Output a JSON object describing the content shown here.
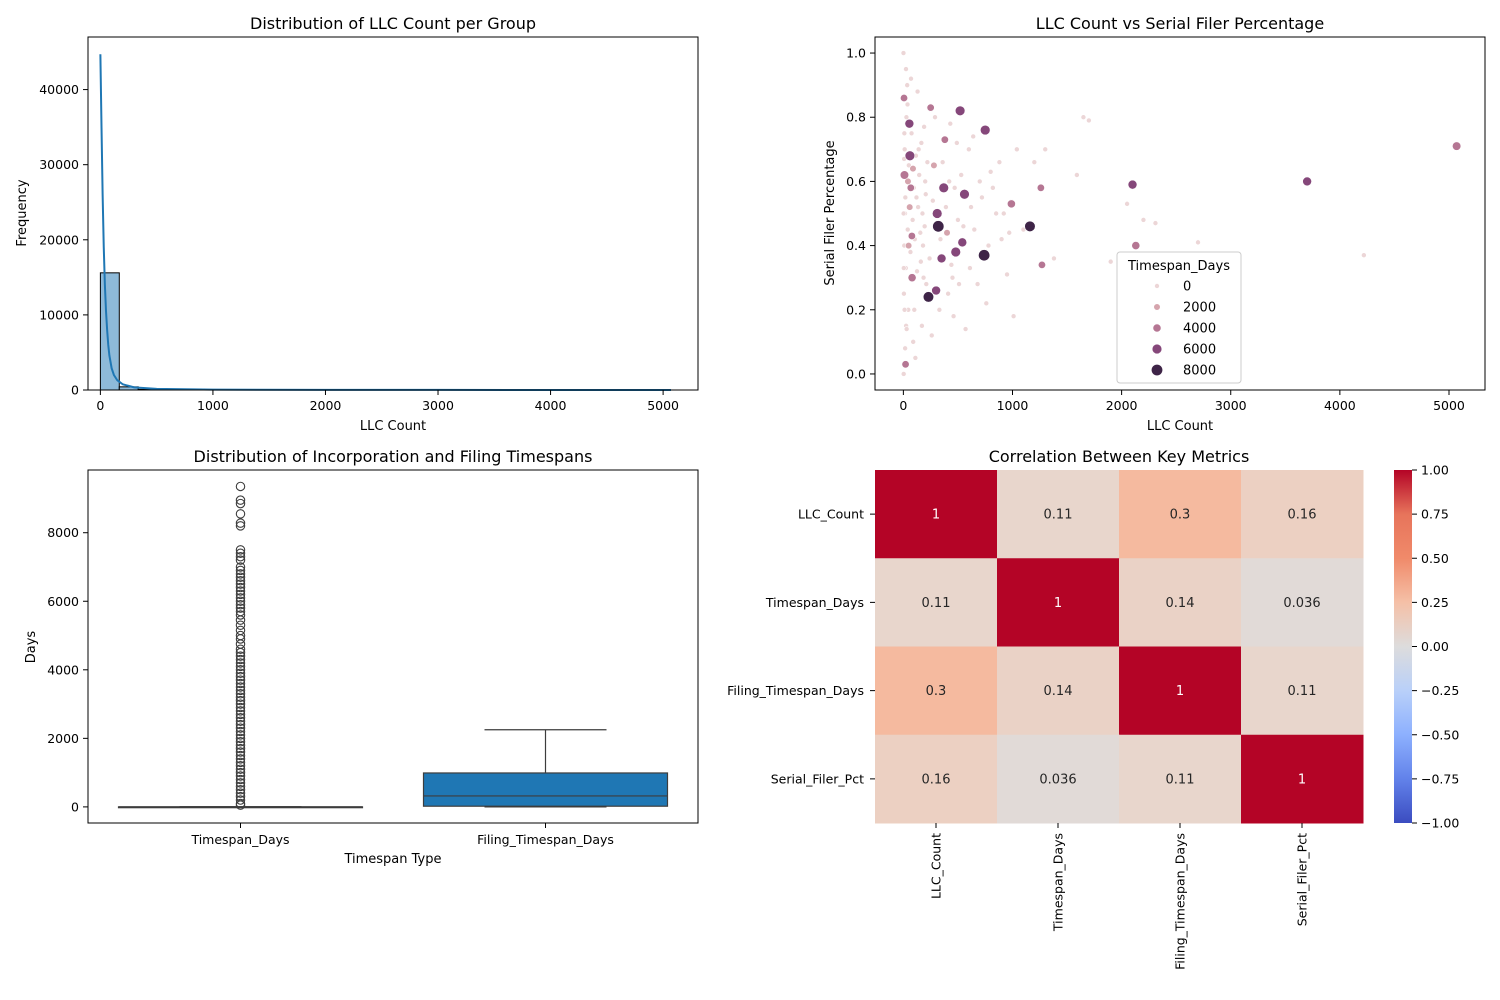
{
  "figure": {
    "background": "#ffffff"
  },
  "chart_data": [
    {
      "id": "hist",
      "type": "bar",
      "title": "Distribution of LLC Count per Group",
      "xlabel": "LLC Count",
      "ylabel": "Frequency",
      "xlim": [
        -110,
        5310
      ],
      "ylim": [
        0,
        47000
      ],
      "xticks": [
        0,
        1000,
        2000,
        3000,
        4000,
        5000
      ],
      "yticks": [
        0,
        10000,
        20000,
        30000,
        40000
      ],
      "bar_color": "#8ebad9",
      "kde_color": "#1f77b4",
      "bins": [
        {
          "x0": 0,
          "x1": 168,
          "count": 15600
        },
        {
          "x0": 168,
          "x1": 336,
          "count": 420
        },
        {
          "x0": 336,
          "x1": 504,
          "count": 90
        },
        {
          "x0": 504,
          "x1": 672,
          "count": 35
        },
        {
          "x0": 672,
          "x1": 840,
          "count": 15
        },
        {
          "x0": 840,
          "x1": 1008,
          "count": 8
        }
      ],
      "kde": {
        "x": [
          0,
          10,
          20,
          30,
          40,
          50,
          60,
          70,
          80,
          100,
          120,
          150,
          200,
          300,
          500,
          1000,
          2000,
          3000,
          4000,
          5070
        ],
        "y": [
          44700,
          35000,
          26000,
          19000,
          14000,
          10500,
          8000,
          6000,
          4600,
          2900,
          2000,
          1300,
          750,
          350,
          150,
          50,
          20,
          10,
          5,
          0
        ]
      }
    },
    {
      "id": "scatter",
      "type": "scatter",
      "title": "LLC Count vs Serial Filer Percentage",
      "xlabel": "LLC Count",
      "ylabel": "Serial Filer Percentage",
      "xlim": [
        -260,
        5330
      ],
      "ylim": [
        -0.05,
        1.05
      ],
      "xticks": [
        0,
        1000,
        2000,
        3000,
        4000,
        5000
      ],
      "yticks": [
        0.0,
        0.2,
        0.4,
        0.6,
        0.8,
        1.0
      ],
      "legend": {
        "title": "Timespan_Days",
        "placement": "lower-center-right",
        "entries": [
          {
            "label": "0",
            "color": "#ecd6d7"
          },
          {
            "label": "2000",
            "color": "#d5a4ad"
          },
          {
            "label": "4000",
            "color": "#b57693"
          },
          {
            "label": "6000",
            "color": "#85477a"
          },
          {
            "label": "8000",
            "color": "#3e2447"
          }
        ]
      },
      "points": [
        [
          1,
          1.0,
          0
        ],
        [
          3,
          0.0,
          0
        ],
        [
          10,
          0.62,
          4500
        ],
        [
          6,
          0.86,
          3000
        ],
        [
          20,
          0.03,
          3000
        ],
        [
          55,
          0.78,
          5000
        ],
        [
          60,
          0.68,
          6000
        ],
        [
          80,
          0.3,
          4000
        ],
        [
          40,
          0.45,
          0
        ],
        [
          15,
          0.5,
          0
        ],
        [
          100,
          0.2,
          0
        ],
        [
          120,
          0.55,
          0
        ],
        [
          140,
          0.7,
          0
        ],
        [
          160,
          0.35,
          0
        ],
        [
          180,
          0.4,
          0
        ],
        [
          200,
          0.6,
          0
        ],
        [
          230,
          0.24,
          7000
        ],
        [
          250,
          0.83,
          3000
        ],
        [
          280,
          0.65,
          2000
        ],
        [
          300,
          0.26,
          5000
        ],
        [
          310,
          0.5,
          6000
        ],
        [
          320,
          0.46,
          8000
        ],
        [
          350,
          0.36,
          5000
        ],
        [
          370,
          0.58,
          6000
        ],
        [
          380,
          0.73,
          3000
        ],
        [
          400,
          0.44,
          2000
        ],
        [
          420,
          0.6,
          0
        ],
        [
          450,
          0.3,
          0
        ],
        [
          480,
          0.38,
          6000
        ],
        [
          500,
          0.48,
          0
        ],
        [
          520,
          0.82,
          6000
        ],
        [
          540,
          0.41,
          5000
        ],
        [
          560,
          0.56,
          6000
        ],
        [
          600,
          0.7,
          0
        ],
        [
          620,
          0.52,
          0
        ],
        [
          650,
          0.45,
          0
        ],
        [
          700,
          0.6,
          0
        ],
        [
          740,
          0.37,
          8000
        ],
        [
          750,
          0.76,
          6000
        ],
        [
          780,
          0.4,
          0
        ],
        [
          800,
          0.63,
          0
        ],
        [
          850,
          0.5,
          0
        ],
        [
          900,
          0.42,
          0
        ],
        [
          950,
          0.31,
          0
        ],
        [
          990,
          0.53,
          4000
        ],
        [
          1010,
          0.18,
          0
        ],
        [
          1040,
          0.7,
          0
        ],
        [
          1100,
          0.45,
          0
        ],
        [
          1160,
          0.46,
          7000
        ],
        [
          1200,
          0.66,
          0
        ],
        [
          1260,
          0.58,
          3000
        ],
        [
          1270,
          0.34,
          3000
        ],
        [
          1300,
          0.7,
          0
        ],
        [
          1380,
          0.36,
          0
        ],
        [
          1590,
          0.62,
          0
        ],
        [
          1650,
          0.8,
          0
        ],
        [
          1700,
          0.79,
          0
        ],
        [
          1900,
          0.35,
          0
        ],
        [
          2050,
          0.53,
          0
        ],
        [
          2100,
          0.59,
          5000
        ],
        [
          2130,
          0.4,
          4000
        ],
        [
          2200,
          0.48,
          0
        ],
        [
          2310,
          0.47,
          0
        ],
        [
          2700,
          0.41,
          0
        ],
        [
          3700,
          0.6,
          5000
        ],
        [
          4220,
          0.37,
          0
        ],
        [
          5070,
          0.71,
          4500
        ],
        [
          25,
          0.15,
          0
        ],
        [
          35,
          0.9,
          0
        ],
        [
          70,
          0.92,
          0
        ],
        [
          90,
          0.1,
          0
        ],
        [
          110,
          0.05,
          0
        ],
        [
          130,
          0.88,
          0
        ],
        [
          170,
          0.15,
          0
        ],
        [
          190,
          0.77,
          0
        ],
        [
          210,
          0.28,
          0
        ],
        [
          260,
          0.12,
          0
        ],
        [
          290,
          0.8,
          0
        ],
        [
          330,
          0.2,
          0
        ],
        [
          360,
          0.66,
          0
        ],
        [
          410,
          0.25,
          0
        ],
        [
          430,
          0.78,
          0
        ],
        [
          460,
          0.18,
          0
        ],
        [
          490,
          0.72,
          0
        ],
        [
          510,
          0.28,
          0
        ],
        [
          530,
          0.62,
          0
        ],
        [
          570,
          0.14,
          0
        ],
        [
          610,
          0.33,
          0
        ],
        [
          640,
          0.74,
          0
        ],
        [
          680,
          0.28,
          0
        ],
        [
          720,
          0.55,
          0
        ],
        [
          760,
          0.22,
          0
        ],
        [
          820,
          0.58,
          0
        ],
        [
          880,
          0.66,
          0
        ],
        [
          920,
          0.5,
          0
        ],
        [
          970,
          0.44,
          0
        ],
        [
          5,
          0.25,
          0
        ],
        [
          8,
          0.4,
          0
        ],
        [
          12,
          0.7,
          0
        ],
        [
          18,
          0.55,
          0
        ],
        [
          22,
          0.33,
          0
        ],
        [
          28,
          0.8,
          0
        ],
        [
          32,
          0.6,
          0
        ],
        [
          45,
          0.2,
          0
        ],
        [
          50,
          0.65,
          0
        ],
        [
          65,
          0.38,
          0
        ],
        [
          75,
          0.75,
          0
        ],
        [
          85,
          0.48,
          0
        ],
        [
          95,
          0.58,
          0
        ],
        [
          105,
          0.42,
          0
        ],
        [
          115,
          0.68,
          0
        ],
        [
          125,
          0.32,
          0
        ],
        [
          135,
          0.52,
          0
        ],
        [
          145,
          0.62,
          0
        ],
        [
          155,
          0.44,
          0
        ],
        [
          165,
          0.72,
          0
        ],
        [
          175,
          0.5,
          0
        ],
        [
          185,
          0.3,
          0
        ],
        [
          195,
          0.46,
          0
        ],
        [
          205,
          0.56,
          0
        ],
        [
          220,
          0.66,
          0
        ],
        [
          240,
          0.36,
          0
        ],
        [
          270,
          0.54,
          0
        ],
        [
          340,
          0.42,
          0
        ],
        [
          390,
          0.52,
          0
        ],
        [
          440,
          0.34,
          0
        ],
        [
          470,
          0.58,
          0
        ],
        [
          550,
          0.46,
          0
        ],
        [
          2,
          0.5,
          0
        ],
        [
          4,
          0.33,
          0
        ],
        [
          7,
          0.67,
          0
        ],
        [
          9,
          0.75,
          0
        ],
        [
          11,
          0.2,
          0
        ],
        [
          14,
          0.86,
          0
        ],
        [
          16,
          0.08,
          0
        ],
        [
          24,
          0.95,
          0
        ],
        [
          30,
          0.14,
          0
        ],
        [
          38,
          0.84,
          0
        ],
        [
          42,
          0.6,
          2000
        ],
        [
          48,
          0.4,
          2000
        ],
        [
          58,
          0.52,
          2000
        ],
        [
          68,
          0.58,
          3000
        ],
        [
          78,
          0.43,
          3000
        ],
        [
          88,
          0.64,
          2000
        ]
      ]
    },
    {
      "id": "box",
      "type": "box",
      "title": "Distribution of Incorporation and Filing Timespans",
      "xlabel": "Timespan Type",
      "ylabel": "Days",
      "ylim": [
        -470,
        9830
      ],
      "yticks": [
        0,
        2000,
        4000,
        6000,
        8000
      ],
      "box_color": "#1f77b4",
      "categories": [
        "Timespan_Days",
        "Filing_Timespan_Days"
      ],
      "boxes": [
        {
          "category": "Timespan_Days",
          "q1": 0,
          "median": 0,
          "q3": 0,
          "whislo": 0,
          "whishi": 0,
          "outliers_max": 9350,
          "outliers": [
            9350,
            8950,
            8850,
            8550,
            8280,
            8200,
            7500,
            7400,
            7300,
            7200,
            7000,
            6900,
            6800,
            6700,
            6600,
            6500,
            6400,
            6300,
            6200,
            6100,
            6000,
            5900,
            5800,
            5700,
            5600,
            5450,
            5300,
            5150,
            5000,
            4900,
            4750,
            4600,
            4500,
            4400,
            4300,
            4200,
            4100,
            4000,
            3900,
            3800,
            3700,
            3600,
            3500,
            3400,
            3300,
            3200,
            3100,
            3000,
            2900,
            2800,
            2700,
            2600,
            2500,
            2400,
            2300,
            2200,
            2100,
            2000,
            1900,
            1800,
            1700,
            1600,
            1500,
            1400,
            1300,
            1200,
            1100,
            1000,
            900,
            800,
            700,
            600,
            500,
            400,
            300,
            200,
            100,
            50
          ]
        },
        {
          "category": "Filing_Timespan_Days",
          "q1": 20,
          "median": 320,
          "q3": 990,
          "whislo": 0,
          "whishi": 2250,
          "outliers": []
        }
      ]
    },
    {
      "id": "heatmap",
      "type": "heatmap",
      "title": "Correlation Between Key Metrics",
      "labels": [
        "LLC_Count",
        "Timespan_Days",
        "Filing_Timespan_Days",
        "Serial_Filer_Pct"
      ],
      "matrix": [
        [
          1,
          0.11,
          0.3,
          0.16
        ],
        [
          0.11,
          1,
          0.14,
          0.036
        ],
        [
          0.3,
          0.14,
          1,
          0.11
        ],
        [
          0.16,
          0.036,
          0.11,
          1
        ]
      ],
      "cell_labels": [
        [
          "1",
          "0.11",
          "0.3",
          "0.16"
        ],
        [
          "0.11",
          "1",
          "0.14",
          "0.036"
        ],
        [
          "0.3",
          "0.14",
          "1",
          "0.11"
        ],
        [
          "0.16",
          "0.036",
          "0.11",
          "1"
        ]
      ],
      "colormap": "coolwarm",
      "vmin": -1,
      "vmax": 1,
      "colorbar_ticks": [
        "1.00",
        "0.75",
        "0.50",
        "0.25",
        "0.00",
        "−0.25",
        "−0.50",
        "−0.75",
        "−1.00"
      ]
    }
  ]
}
